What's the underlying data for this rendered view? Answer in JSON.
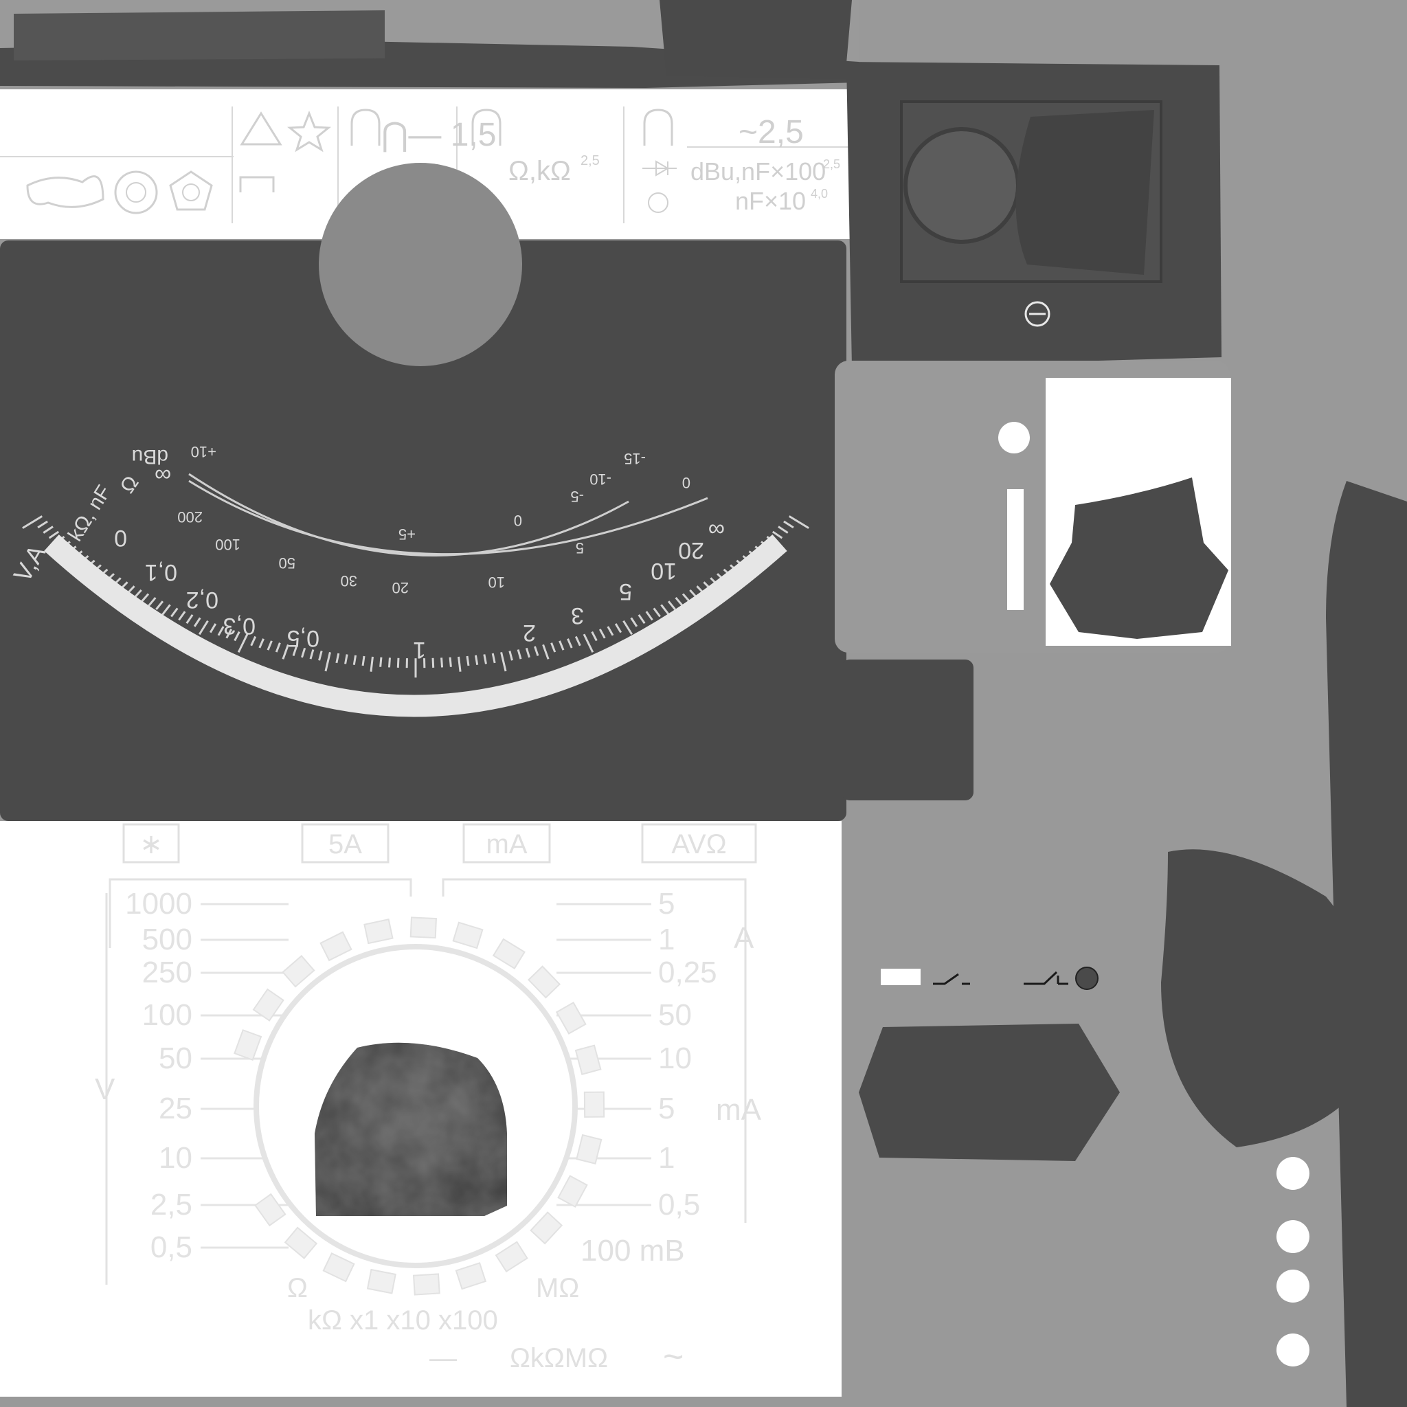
{
  "header_plate": {
    "range_text": "⋂— 1,5",
    "ac_text": "~2,5",
    "ohm_text": "Ω,kΩ",
    "ohm_class": "2,5",
    "dbu_text": "dBu,nF×100",
    "dbu_class": "2,5",
    "nf_text": "nF×10",
    "nf_class": "4,0"
  },
  "dial": {
    "unit_labels": [
      "V,A",
      "kΩ, nF",
      "Ω",
      "dBu"
    ],
    "dbu_scale": [
      "+10",
      "+5",
      "0",
      "-5",
      "-10",
      "-15",
      "0"
    ],
    "ohm_scale": [
      "200",
      "100",
      "50",
      "30",
      "20",
      "10",
      "5"
    ],
    "main_scale": [
      "0",
      "0,1",
      "0,2",
      "0,3",
      "0,5",
      "1",
      "2",
      "3",
      "5",
      "10",
      "20",
      "∞"
    ],
    "infinity_left": "∞"
  },
  "selector_panel": {
    "sockets": [
      "∗",
      "5A",
      "mA",
      "AVΩ"
    ],
    "voltage_ranges": [
      "1000",
      "500",
      "250",
      "100",
      "50",
      "25",
      "10",
      "2,5",
      "0,5"
    ],
    "voltage_unit": "V",
    "current_ranges": [
      "5",
      "1",
      "0,25",
      "50",
      "10",
      "5",
      "1",
      "0,5"
    ],
    "amp_unit": "A",
    "ma_unit": "mA",
    "mv_label": "100 mB",
    "ohm_left": "Ω",
    "ohm_right": "MΩ",
    "multipliers": "kΩ x1 x10 x100",
    "mode_label": "ΩkΩMΩ",
    "dc_symbol": "—",
    "ac_symbol": "~"
  },
  "colors": {
    "background": "#999999",
    "dial_face": "#4a4a4a",
    "white_plate": "#ffffff",
    "engraving": "#d4d4d4"
  }
}
